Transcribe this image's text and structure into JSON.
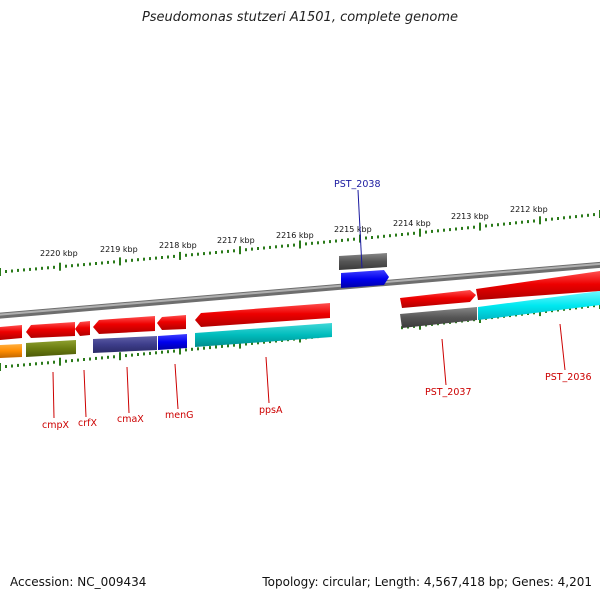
{
  "title": "Pseudomonas stutzeri A1501, complete genome",
  "footer": {
    "accession": "Accession: NC_009434",
    "topology": "Topology: circular; Length: 4,567,418 bp; Genes: 4,201"
  },
  "scale": {
    "unit": "kbp",
    "ticks": [
      "2220 kbp",
      "2219 kbp",
      "2218 kbp",
      "2217 kbp",
      "2216 kbp",
      "2215 kbp",
      "2214 kbp",
      "2213 kbp",
      "2212 kbp"
    ]
  },
  "gene_labels": {
    "pst_2038": "PST_2038",
    "pst_2037": "PST_2037",
    "pst_2036": "PST_2036",
    "cmpx": "cmpX",
    "crfx": "crfX",
    "cmax": "cmaX",
    "meng": "menG",
    "ppsa": "ppsA"
  },
  "colors": {
    "backbone": "#8a8a8a",
    "tick_green": "#2a7a1a",
    "gene_red": "#ee0000",
    "gene_grey": "#555555",
    "gene_blue": "#0000ee",
    "gene_cyan": "#00bcbc",
    "gene_cyan_bright": "#00e8f0",
    "gene_orange": "#ff8c00",
    "gene_olive": "#6b7d10",
    "gene_slate": "#3d3d8a",
    "label_red": "#cc0000",
    "label_blue": "#1a1aa0"
  }
}
